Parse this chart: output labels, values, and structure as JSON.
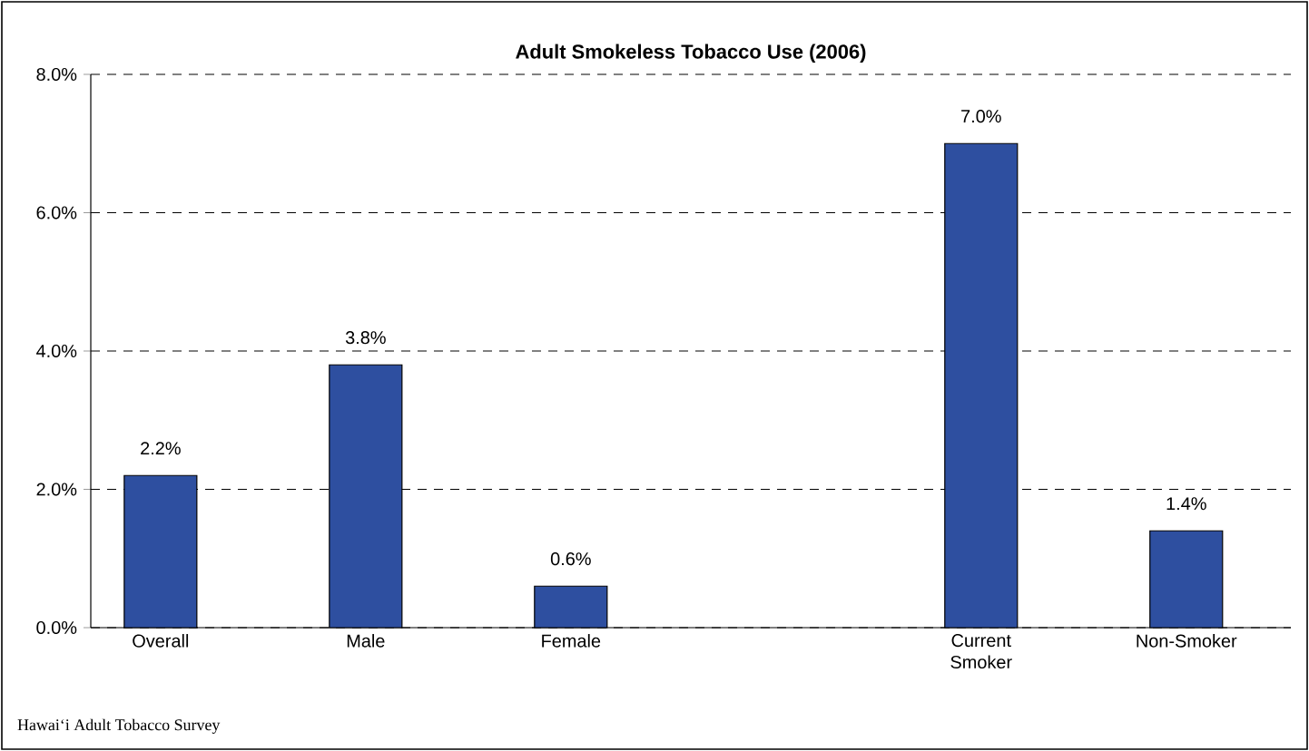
{
  "chart_data": {
    "type": "bar",
    "title": "Adult Smokeless Tobacco Use (2006)",
    "categories": [
      "Overall",
      "Male",
      "Female",
      null,
      "Current Smoker",
      "Non-Smoker"
    ],
    "values": [
      2.2,
      3.8,
      0.6,
      null,
      7.0,
      1.4
    ],
    "value_labels": [
      "2.2%",
      "3.8%",
      "0.6%",
      null,
      "7.0%",
      "1.4%"
    ],
    "color": "#2e4fa0",
    "ylim": [
      0,
      8
    ],
    "yticks": [
      {
        "value": 0,
        "label": "0.0%"
      },
      {
        "value": 2,
        "label": "2.0%"
      },
      {
        "value": 4,
        "label": "4.0%"
      },
      {
        "value": 6,
        "label": "6.0%"
      },
      {
        "value": 8,
        "label": "8.0%"
      }
    ],
    "grid": "y",
    "line_style": "dashed",
    "annotations": [
      "Hawai‘i  Adult Tobacco Survey"
    ]
  }
}
